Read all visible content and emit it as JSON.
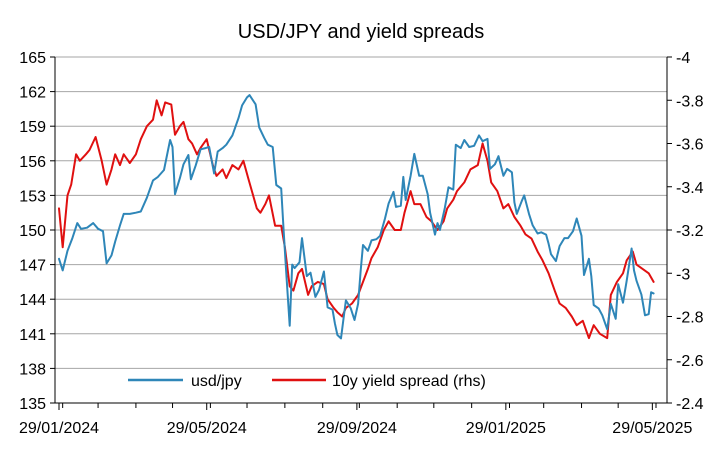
{
  "chart_data": {
    "type": "line",
    "title": "USD/JPY and yield spreads",
    "x_tick_labels": [
      "29/01/2024",
      "29/05/2024",
      "29/09/2024",
      "29/01/2025",
      "29/05/2025"
    ],
    "x_ticks": [
      "2024-01-29",
      "2024-05-29",
      "2024-09-29",
      "2025-01-29",
      "2025-05-29"
    ],
    "x_range": [
      "2024-01-29",
      "2025-06-10"
    ],
    "y_left": {
      "ylim": [
        135,
        165
      ],
      "ticks": [
        "135",
        "138",
        "141",
        "144",
        "147",
        "150",
        "153",
        "156",
        "159",
        "162",
        "165"
      ]
    },
    "y_right": {
      "ylim": [
        -2.4,
        -4.0
      ],
      "ticks": [
        "-2.4",
        "-2.6",
        "-2.8",
        "-3",
        "-3.2",
        "-3.4",
        "-3.6",
        "-3.8",
        "-4"
      ],
      "inverted": true
    },
    "grid": true,
    "legend_position": "bottom",
    "colors": {
      "usdjpy": "#2e86b8",
      "spread": "#e01010",
      "grid": "#a6a6a6",
      "axis": "#000000"
    },
    "series": [
      {
        "name": "usd/jpy",
        "axis": "left",
        "points": [
          [
            "2024-01-29",
            147.5
          ],
          [
            "2024-02-01",
            146.5
          ],
          [
            "2024-02-05",
            148.2
          ],
          [
            "2024-02-09",
            149.3
          ],
          [
            "2024-02-13",
            150.6
          ],
          [
            "2024-02-16",
            150.1
          ],
          [
            "2024-02-21",
            150.2
          ],
          [
            "2024-02-26",
            150.6
          ],
          [
            "2024-03-01",
            150.1
          ],
          [
            "2024-03-05",
            149.9
          ],
          [
            "2024-03-08",
            147.1
          ],
          [
            "2024-03-12",
            147.8
          ],
          [
            "2024-03-15",
            149.0
          ],
          [
            "2024-03-19",
            150.4
          ],
          [
            "2024-03-22",
            151.4
          ],
          [
            "2024-03-27",
            151.4
          ],
          [
            "2024-04-01",
            151.5
          ],
          [
            "2024-04-05",
            151.6
          ],
          [
            "2024-04-10",
            152.8
          ],
          [
            "2024-04-15",
            154.3
          ],
          [
            "2024-04-19",
            154.6
          ],
          [
            "2024-04-24",
            155.2
          ],
          [
            "2024-04-29",
            157.8
          ],
          [
            "2024-05-01",
            157.2
          ],
          [
            "2024-05-03",
            153.1
          ],
          [
            "2024-05-07",
            154.5
          ],
          [
            "2024-05-10",
            155.7
          ],
          [
            "2024-05-14",
            156.5
          ],
          [
            "2024-05-16",
            154.4
          ],
          [
            "2024-05-20",
            155.6
          ],
          [
            "2024-05-24",
            157.0
          ],
          [
            "2024-05-28",
            157.1
          ],
          [
            "2024-05-31",
            157.2
          ],
          [
            "2024-06-04",
            154.9
          ],
          [
            "2024-06-07",
            156.8
          ],
          [
            "2024-06-11",
            157.1
          ],
          [
            "2024-06-14",
            157.4
          ],
          [
            "2024-06-19",
            158.2
          ],
          [
            "2024-06-24",
            159.7
          ],
          [
            "2024-06-27",
            160.8
          ],
          [
            "2024-07-01",
            161.5
          ],
          [
            "2024-07-03",
            161.7
          ],
          [
            "2024-07-08",
            160.9
          ],
          [
            "2024-07-11",
            158.9
          ],
          [
            "2024-07-15",
            158.0
          ],
          [
            "2024-07-18",
            157.4
          ],
          [
            "2024-07-22",
            157.2
          ],
          [
            "2024-07-25",
            153.9
          ],
          [
            "2024-07-29",
            153.6
          ],
          [
            "2024-07-31",
            150.0
          ],
          [
            "2024-08-02",
            146.5
          ],
          [
            "2024-08-05",
            141.7
          ],
          [
            "2024-08-07",
            147.0
          ],
          [
            "2024-08-09",
            146.7
          ],
          [
            "2024-08-13",
            147.2
          ],
          [
            "2024-08-15",
            149.3
          ],
          [
            "2024-08-19",
            146.0
          ],
          [
            "2024-08-22",
            146.3
          ],
          [
            "2024-08-26",
            144.2
          ],
          [
            "2024-08-29",
            144.8
          ],
          [
            "2024-09-02",
            146.4
          ],
          [
            "2024-09-05",
            143.3
          ],
          [
            "2024-09-09",
            143.1
          ],
          [
            "2024-09-11",
            141.9
          ],
          [
            "2024-09-13",
            140.9
          ],
          [
            "2024-09-16",
            140.6
          ],
          [
            "2024-09-18",
            142.3
          ],
          [
            "2024-09-20",
            143.9
          ],
          [
            "2024-09-24",
            143.2
          ],
          [
            "2024-09-27",
            142.2
          ],
          [
            "2024-09-30",
            143.6
          ],
          [
            "2024-10-02",
            146.4
          ],
          [
            "2024-10-04",
            148.7
          ],
          [
            "2024-10-08",
            148.2
          ],
          [
            "2024-10-11",
            149.1
          ],
          [
            "2024-10-15",
            149.2
          ],
          [
            "2024-10-18",
            149.5
          ],
          [
            "2024-10-22",
            151.0
          ],
          [
            "2024-10-25",
            152.3
          ],
          [
            "2024-10-29",
            153.3
          ],
          [
            "2024-10-31",
            152.0
          ],
          [
            "2024-11-04",
            152.1
          ],
          [
            "2024-11-06",
            154.6
          ],
          [
            "2024-11-08",
            152.6
          ],
          [
            "2024-11-12",
            154.7
          ],
          [
            "2024-11-15",
            156.6
          ],
          [
            "2024-11-19",
            154.7
          ],
          [
            "2024-11-22",
            154.7
          ],
          [
            "2024-11-26",
            153.1
          ],
          [
            "2024-11-28",
            151.5
          ],
          [
            "2024-12-02",
            149.6
          ],
          [
            "2024-12-04",
            150.6
          ],
          [
            "2024-12-06",
            150.0
          ],
          [
            "2024-12-10",
            151.9
          ],
          [
            "2024-12-13",
            153.7
          ],
          [
            "2024-12-17",
            153.5
          ],
          [
            "2024-12-19",
            157.4
          ],
          [
            "2024-12-23",
            157.1
          ],
          [
            "2024-12-26",
            157.8
          ],
          [
            "2024-12-30",
            157.2
          ],
          [
            "2025-01-03",
            157.3
          ],
          [
            "2025-01-07",
            158.2
          ],
          [
            "2025-01-10",
            157.7
          ],
          [
            "2025-01-14",
            157.9
          ],
          [
            "2025-01-16",
            155.3
          ],
          [
            "2025-01-20",
            155.7
          ],
          [
            "2025-01-23",
            156.4
          ],
          [
            "2025-01-27",
            154.7
          ],
          [
            "2025-01-30",
            155.3
          ],
          [
            "2025-02-03",
            155.0
          ],
          [
            "2025-02-05",
            152.4
          ],
          [
            "2025-02-07",
            151.4
          ],
          [
            "2025-02-11",
            152.5
          ],
          [
            "2025-02-13",
            153.0
          ],
          [
            "2025-02-17",
            151.4
          ],
          [
            "2025-02-20",
            150.4
          ],
          [
            "2025-02-24",
            149.7
          ],
          [
            "2025-02-27",
            149.8
          ],
          [
            "2025-03-03",
            149.6
          ],
          [
            "2025-03-05",
            148.8
          ],
          [
            "2025-03-07",
            147.9
          ],
          [
            "2025-03-11",
            147.3
          ],
          [
            "2025-03-14",
            148.6
          ],
          [
            "2025-03-18",
            149.3
          ],
          [
            "2025-03-21",
            149.3
          ],
          [
            "2025-03-25",
            149.9
          ],
          [
            "2025-03-28",
            151.0
          ],
          [
            "2025-04-01",
            149.5
          ],
          [
            "2025-04-03",
            146.1
          ],
          [
            "2025-04-07",
            147.5
          ],
          [
            "2025-04-09",
            146.0
          ],
          [
            "2025-04-11",
            143.5
          ],
          [
            "2025-04-15",
            143.2
          ],
          [
            "2025-04-18",
            142.6
          ],
          [
            "2025-04-22",
            141.4
          ],
          [
            "2025-04-25",
            143.6
          ],
          [
            "2025-04-29",
            142.3
          ],
          [
            "2025-05-01",
            145.3
          ],
          [
            "2025-05-05",
            143.7
          ],
          [
            "2025-05-08",
            145.6
          ],
          [
            "2025-05-12",
            148.4
          ],
          [
            "2025-05-14",
            146.5
          ],
          [
            "2025-05-16",
            145.6
          ],
          [
            "2025-05-20",
            144.4
          ],
          [
            "2025-05-23",
            142.6
          ],
          [
            "2025-05-26",
            142.7
          ],
          [
            "2025-05-28",
            144.6
          ],
          [
            "2025-05-30",
            144.5
          ]
        ]
      },
      {
        "name": "10y yield spread (rhs)",
        "axis": "right",
        "points": [
          [
            "2024-01-29",
            -3.3
          ],
          [
            "2024-02-01",
            -3.12
          ],
          [
            "2024-02-05",
            -3.36
          ],
          [
            "2024-02-08",
            -3.41
          ],
          [
            "2024-02-12",
            -3.55
          ],
          [
            "2024-02-15",
            -3.52
          ],
          [
            "2024-02-20",
            -3.55
          ],
          [
            "2024-02-23",
            -3.57
          ],
          [
            "2024-02-28",
            -3.63
          ],
          [
            "2024-03-04",
            -3.52
          ],
          [
            "2024-03-08",
            -3.41
          ],
          [
            "2024-03-12",
            -3.48
          ],
          [
            "2024-03-15",
            -3.55
          ],
          [
            "2024-03-19",
            -3.5
          ],
          [
            "2024-03-22",
            -3.55
          ],
          [
            "2024-03-27",
            -3.51
          ],
          [
            "2024-04-01",
            -3.55
          ],
          [
            "2024-04-05",
            -3.62
          ],
          [
            "2024-04-10",
            -3.68
          ],
          [
            "2024-04-15",
            -3.71
          ],
          [
            "2024-04-18",
            -3.8
          ],
          [
            "2024-04-22",
            -3.73
          ],
          [
            "2024-04-25",
            -3.79
          ],
          [
            "2024-04-30",
            -3.78
          ],
          [
            "2024-05-03",
            -3.64
          ],
          [
            "2024-05-07",
            -3.68
          ],
          [
            "2024-05-10",
            -3.7
          ],
          [
            "2024-05-14",
            -3.62
          ],
          [
            "2024-05-17",
            -3.6
          ],
          [
            "2024-05-21",
            -3.55
          ],
          [
            "2024-05-24",
            -3.58
          ],
          [
            "2024-05-29",
            -3.62
          ],
          [
            "2024-06-03",
            -3.5
          ],
          [
            "2024-06-06",
            -3.45
          ],
          [
            "2024-06-11",
            -3.48
          ],
          [
            "2024-06-14",
            -3.44
          ],
          [
            "2024-06-19",
            -3.5
          ],
          [
            "2024-06-24",
            -3.48
          ],
          [
            "2024-06-28",
            -3.52
          ],
          [
            "2024-07-02",
            -3.44
          ],
          [
            "2024-07-05",
            -3.38
          ],
          [
            "2024-07-09",
            -3.3
          ],
          [
            "2024-07-12",
            -3.28
          ],
          [
            "2024-07-16",
            -3.32
          ],
          [
            "2024-07-19",
            -3.36
          ],
          [
            "2024-07-24",
            -3.22
          ],
          [
            "2024-07-29",
            -3.22
          ],
          [
            "2024-08-01",
            -3.12
          ],
          [
            "2024-08-05",
            -2.94
          ],
          [
            "2024-08-08",
            -2.92
          ],
          [
            "2024-08-12",
            -3.0
          ],
          [
            "2024-08-15",
            -3.02
          ],
          [
            "2024-08-20",
            -2.9
          ],
          [
            "2024-08-23",
            -2.94
          ],
          [
            "2024-08-28",
            -2.96
          ],
          [
            "2024-09-02",
            -2.95
          ],
          [
            "2024-09-05",
            -2.88
          ],
          [
            "2024-09-10",
            -2.84
          ],
          [
            "2024-09-13",
            -2.82
          ],
          [
            "2024-09-17",
            -2.8
          ],
          [
            "2024-09-20",
            -2.84
          ],
          [
            "2024-09-25",
            -2.86
          ],
          [
            "2024-09-30",
            -2.9
          ],
          [
            "2024-10-04",
            -2.96
          ],
          [
            "2024-10-08",
            -3.02
          ],
          [
            "2024-10-11",
            -3.07
          ],
          [
            "2024-10-16",
            -3.12
          ],
          [
            "2024-10-21",
            -3.2
          ],
          [
            "2024-10-25",
            -3.24
          ],
          [
            "2024-10-30",
            -3.2
          ],
          [
            "2024-11-04",
            -3.2
          ],
          [
            "2024-11-07",
            -3.28
          ],
          [
            "2024-11-12",
            -3.38
          ],
          [
            "2024-11-15",
            -3.32
          ],
          [
            "2024-11-20",
            -3.32
          ],
          [
            "2024-11-25",
            -3.26
          ],
          [
            "2024-11-29",
            -3.24
          ],
          [
            "2024-12-04",
            -3.2
          ],
          [
            "2024-12-09",
            -3.24
          ],
          [
            "2024-12-12",
            -3.3
          ],
          [
            "2024-12-17",
            -3.34
          ],
          [
            "2024-12-20",
            -3.38
          ],
          [
            "2024-12-26",
            -3.42
          ],
          [
            "2024-12-31",
            -3.48
          ],
          [
            "2025-01-06",
            -3.5
          ],
          [
            "2025-01-10",
            -3.6
          ],
          [
            "2025-01-14",
            -3.52
          ],
          [
            "2025-01-17",
            -3.42
          ],
          [
            "2025-01-22",
            -3.38
          ],
          [
            "2025-01-27",
            -3.3
          ],
          [
            "2025-01-31",
            -3.32
          ],
          [
            "2025-02-05",
            -3.26
          ],
          [
            "2025-02-10",
            -3.22
          ],
          [
            "2025-02-14",
            -3.18
          ],
          [
            "2025-02-19",
            -3.16
          ],
          [
            "2025-02-24",
            -3.1
          ],
          [
            "2025-02-28",
            -3.06
          ],
          [
            "2025-03-05",
            -3.0
          ],
          [
            "2025-03-10",
            -2.92
          ],
          [
            "2025-03-14",
            -2.86
          ],
          [
            "2025-03-19",
            -2.84
          ],
          [
            "2025-03-24",
            -2.8
          ],
          [
            "2025-03-28",
            -2.76
          ],
          [
            "2025-04-02",
            -2.78
          ],
          [
            "2025-04-07",
            -2.7
          ],
          [
            "2025-04-11",
            -2.76
          ],
          [
            "2025-04-16",
            -2.72
          ],
          [
            "2025-04-22",
            -2.7
          ],
          [
            "2025-04-25",
            -2.9
          ],
          [
            "2025-04-30",
            -2.96
          ],
          [
            "2025-05-05",
            -3.0
          ],
          [
            "2025-05-08",
            -3.06
          ],
          [
            "2025-05-13",
            -3.1
          ],
          [
            "2025-05-16",
            -3.04
          ],
          [
            "2025-05-21",
            -3.02
          ],
          [
            "2025-05-26",
            -3.0
          ],
          [
            "2025-05-30",
            -2.96
          ]
        ]
      }
    ]
  }
}
